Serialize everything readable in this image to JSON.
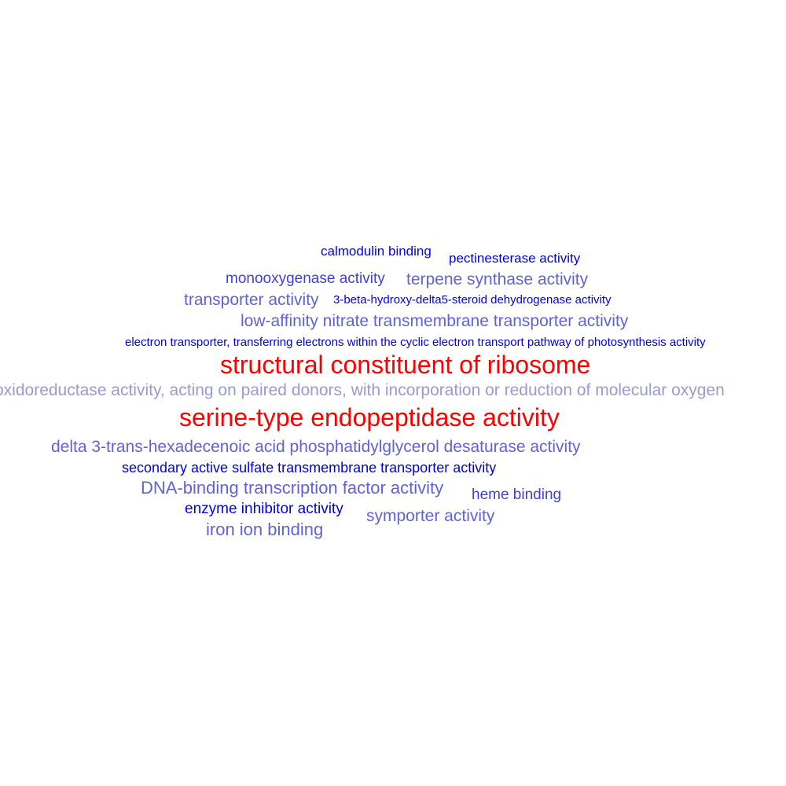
{
  "word_cloud": {
    "terms": [
      {
        "id": "calmodulin-binding",
        "text": "calmodulin binding",
        "color": "#0000e6"
      },
      {
        "id": "pectinesterase-activity",
        "text": "pectinesterase activity",
        "color": "#0000e6"
      },
      {
        "id": "monooxygenase-activity",
        "text": "monooxygenase activity",
        "color": "#4141d6"
      },
      {
        "id": "terpene-synthase-activity",
        "text": "terpene synthase activity",
        "color": "#6262d8"
      },
      {
        "id": "transporter-activity",
        "text": "transporter activity",
        "color": "#6262d8"
      },
      {
        "id": "3-beta-hydroxy-delta5-steroid-dehydrogenase-activity",
        "text": "3-beta-hydroxy-delta5-steroid dehydrogenase activity",
        "color": "#0000e6"
      },
      {
        "id": "low-affinity-nitrate-transmembrane-transporter-activity",
        "text": "low-affinity nitrate transmembrane transporter activity",
        "color": "#6262d8"
      },
      {
        "id": "electron-transporter",
        "text": "electron transporter, transferring electrons within the cyclic electron transport pathway of photosynthesis activity",
        "color": "#0000e6"
      },
      {
        "id": "structural-constituent-of-ribosome",
        "text": "structural constituent of ribosome",
        "color": "#ff0000"
      },
      {
        "id": "oxidoreductase-activity",
        "text": "oxidoreductase activity, acting on paired donors, with incorporation or reduction of molecular oxygen",
        "color": "#9a9ad0"
      },
      {
        "id": "serine-type-endopeptidase-activity",
        "text": "serine-type endopeptidase activity",
        "color": "#ff0000"
      },
      {
        "id": "delta-3-trans-hexadecenoic-acid",
        "text": "delta 3-trans-hexadecenoic acid phosphatidylglycerol desaturase activity",
        "color": "#6262d8"
      },
      {
        "id": "secondary-active-sulfate-transporter",
        "text": "secondary active sulfate transmembrane transporter activity",
        "color": "#0000e6"
      },
      {
        "id": "dna-binding-transcription-factor-activity",
        "text": "DNA-binding transcription factor activity",
        "color": "#6262d8"
      },
      {
        "id": "heme-binding",
        "text": "heme binding",
        "color": "#4141d6"
      },
      {
        "id": "enzyme-inhibitor-activity",
        "text": "enzyme inhibitor activity",
        "color": "#0000e6"
      },
      {
        "id": "symporter-activity",
        "text": "symporter activity",
        "color": "#6262d8"
      },
      {
        "id": "iron-ion-binding",
        "text": "iron ion binding",
        "color": "#6262d8"
      }
    ]
  }
}
